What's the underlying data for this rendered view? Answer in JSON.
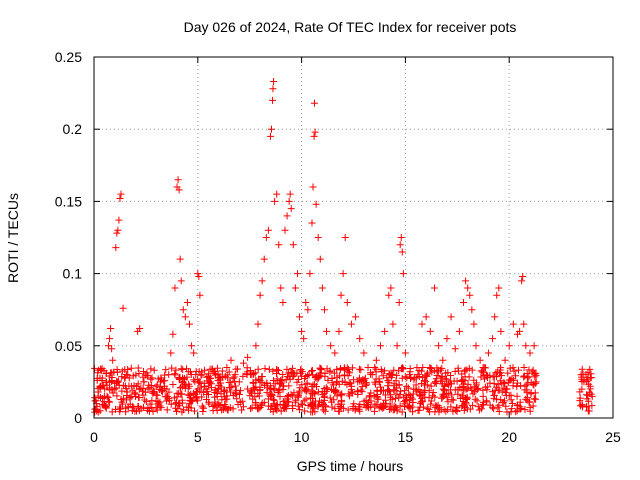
{
  "chart_data": {
    "type": "scatter",
    "title": "Day 026 of 2024, Rate Of TEC Index for receiver pots",
    "xlabel": "GPS time / hours",
    "ylabel": "ROTI / TECUs",
    "xlim": [
      0,
      25
    ],
    "ylim": [
      0,
      0.25
    ],
    "xticks": [
      "0",
      "5",
      "10",
      "15",
      "20",
      "25"
    ],
    "yticks": [
      "0",
      "0.05",
      "0.1",
      "0.15",
      "0.2",
      "0.25"
    ],
    "grid": true,
    "legend": "none",
    "marker": "plus",
    "color": "#ff0000",
    "series": [
      {
        "points": [
          [
            0.1,
            0.012
          ],
          [
            0.2,
            0.018
          ],
          [
            0.3,
            0.022
          ],
          [
            0.4,
            0.009
          ],
          [
            0.5,
            0.015
          ],
          [
            0.6,
            0.031
          ],
          [
            0.7,
            0.05
          ],
          [
            0.75,
            0.055
          ],
          [
            0.8,
            0.062
          ],
          [
            0.85,
            0.048
          ],
          [
            0.9,
            0.04
          ],
          [
            1.0,
            0.02
          ],
          [
            1.05,
            0.118
          ],
          [
            1.1,
            0.128
          ],
          [
            1.15,
            0.13
          ],
          [
            1.2,
            0.137
          ],
          [
            1.25,
            0.152
          ],
          [
            1.3,
            0.155
          ],
          [
            1.4,
            0.076
          ],
          [
            1.5,
            0.028
          ],
          [
            1.6,
            0.018
          ],
          [
            1.8,
            0.022
          ],
          [
            2.0,
            0.015
          ],
          [
            2.1,
            0.06
          ],
          [
            2.2,
            0.062
          ],
          [
            2.4,
            0.025
          ],
          [
            2.6,
            0.02
          ],
          [
            2.8,
            0.018
          ],
          [
            3.0,
            0.016
          ],
          [
            3.2,
            0.025
          ],
          [
            3.4,
            0.022
          ],
          [
            3.6,
            0.03
          ],
          [
            3.7,
            0.045
          ],
          [
            3.8,
            0.058
          ],
          [
            3.9,
            0.09
          ],
          [
            4.0,
            0.16
          ],
          [
            4.05,
            0.165
          ],
          [
            4.1,
            0.158
          ],
          [
            4.15,
            0.11
          ],
          [
            4.2,
            0.095
          ],
          [
            4.3,
            0.075
          ],
          [
            4.4,
            0.07
          ],
          [
            4.5,
            0.08
          ],
          [
            4.6,
            0.065
          ],
          [
            4.7,
            0.05
          ],
          [
            4.8,
            0.045
          ],
          [
            4.9,
            0.03
          ],
          [
            5.0,
            0.1
          ],
          [
            5.05,
            0.098
          ],
          [
            5.1,
            0.085
          ],
          [
            5.2,
            0.03
          ],
          [
            5.4,
            0.02
          ],
          [
            5.6,
            0.025
          ],
          [
            5.8,
            0.032
          ],
          [
            6.0,
            0.02
          ],
          [
            6.2,
            0.028
          ],
          [
            6.4,
            0.035
          ],
          [
            6.6,
            0.04
          ],
          [
            6.8,
            0.03
          ],
          [
            7.0,
            0.025
          ],
          [
            7.2,
            0.038
          ],
          [
            7.4,
            0.042
          ],
          [
            7.6,
            0.03
          ],
          [
            7.8,
            0.05
          ],
          [
            7.9,
            0.065
          ],
          [
            8.0,
            0.085
          ],
          [
            8.1,
            0.095
          ],
          [
            8.2,
            0.11
          ],
          [
            8.3,
            0.125
          ],
          [
            8.4,
            0.13
          ],
          [
            8.5,
            0.195
          ],
          [
            8.55,
            0.2
          ],
          [
            8.6,
            0.22
          ],
          [
            8.62,
            0.228
          ],
          [
            8.65,
            0.233
          ],
          [
            8.7,
            0.15
          ],
          [
            8.8,
            0.155
          ],
          [
            8.9,
            0.12
          ],
          [
            9.0,
            0.09
          ],
          [
            9.1,
            0.08
          ],
          [
            9.2,
            0.13
          ],
          [
            9.3,
            0.14
          ],
          [
            9.4,
            0.15
          ],
          [
            9.45,
            0.155
          ],
          [
            9.5,
            0.145
          ],
          [
            9.6,
            0.12
          ],
          [
            9.7,
            0.09
          ],
          [
            9.8,
            0.1
          ],
          [
            9.9,
            0.07
          ],
          [
            10.0,
            0.06
          ],
          [
            10.1,
            0.055
          ],
          [
            10.2,
            0.08
          ],
          [
            10.3,
            0.075
          ],
          [
            10.4,
            0.1
          ],
          [
            10.5,
            0.135
          ],
          [
            10.55,
            0.16
          ],
          [
            10.6,
            0.195
          ],
          [
            10.62,
            0.218
          ],
          [
            10.65,
            0.198
          ],
          [
            10.7,
            0.148
          ],
          [
            10.8,
            0.125
          ],
          [
            10.9,
            0.11
          ],
          [
            11.0,
            0.09
          ],
          [
            11.1,
            0.075
          ],
          [
            11.2,
            0.06
          ],
          [
            11.4,
            0.05
          ],
          [
            11.6,
            0.045
          ],
          [
            11.8,
            0.06
          ],
          [
            11.9,
            0.085
          ],
          [
            12.0,
            0.1
          ],
          [
            12.1,
            0.125
          ],
          [
            12.2,
            0.08
          ],
          [
            12.4,
            0.065
          ],
          [
            12.6,
            0.07
          ],
          [
            12.8,
            0.055
          ],
          [
            13.0,
            0.045
          ],
          [
            13.2,
            0.035
          ],
          [
            13.4,
            0.03
          ],
          [
            13.6,
            0.04
          ],
          [
            13.8,
            0.05
          ],
          [
            14.0,
            0.06
          ],
          [
            14.2,
            0.085
          ],
          [
            14.3,
            0.09
          ],
          [
            14.4,
            0.065
          ],
          [
            14.6,
            0.05
          ],
          [
            14.7,
            0.08
          ],
          [
            14.75,
            0.12
          ],
          [
            14.8,
            0.125
          ],
          [
            14.85,
            0.115
          ],
          [
            14.9,
            0.1
          ],
          [
            15.0,
            0.045
          ],
          [
            15.2,
            0.03
          ],
          [
            15.4,
            0.02
          ],
          [
            15.6,
            0.03
          ],
          [
            15.8,
            0.065
          ],
          [
            16.0,
            0.07
          ],
          [
            16.2,
            0.06
          ],
          [
            16.4,
            0.09
          ],
          [
            16.6,
            0.05
          ],
          [
            16.8,
            0.04
          ],
          [
            17.0,
            0.055
          ],
          [
            17.2,
            0.07
          ],
          [
            17.4,
            0.048
          ],
          [
            17.6,
            0.06
          ],
          [
            17.8,
            0.08
          ],
          [
            17.9,
            0.095
          ],
          [
            18.0,
            0.09
          ],
          [
            18.1,
            0.085
          ],
          [
            18.2,
            0.075
          ],
          [
            18.3,
            0.065
          ],
          [
            18.4,
            0.05
          ],
          [
            18.6,
            0.04
          ],
          [
            18.8,
            0.035
          ],
          [
            19.0,
            0.045
          ],
          [
            19.2,
            0.055
          ],
          [
            19.3,
            0.07
          ],
          [
            19.4,
            0.085
          ],
          [
            19.5,
            0.09
          ],
          [
            19.6,
            0.06
          ],
          [
            19.8,
            0.04
          ],
          [
            20.0,
            0.05
          ],
          [
            20.2,
            0.065
          ],
          [
            20.4,
            0.058
          ],
          [
            20.5,
            0.06
          ],
          [
            20.6,
            0.095
          ],
          [
            20.65,
            0.098
          ],
          [
            20.7,
            0.065
          ],
          [
            20.8,
            0.05
          ],
          [
            21.0,
            0.045
          ],
          [
            21.2,
            0.05
          ],
          [
            21.3,
            0.025
          ],
          [
            23.4,
            0.012
          ],
          [
            23.5,
            0.02
          ],
          [
            23.6,
            0.025
          ],
          [
            23.7,
            0.03
          ],
          [
            23.8,
            0.028
          ],
          [
            23.9,
            0.022
          ],
          [
            24.0,
            0.015
          ]
        ]
      }
    ],
    "baseline_band": {
      "segments": [
        [
          0,
          21.3
        ],
        [
          23.4,
          24.0
        ]
      ],
      "y_min": 0.004,
      "y_max": 0.035
    }
  }
}
